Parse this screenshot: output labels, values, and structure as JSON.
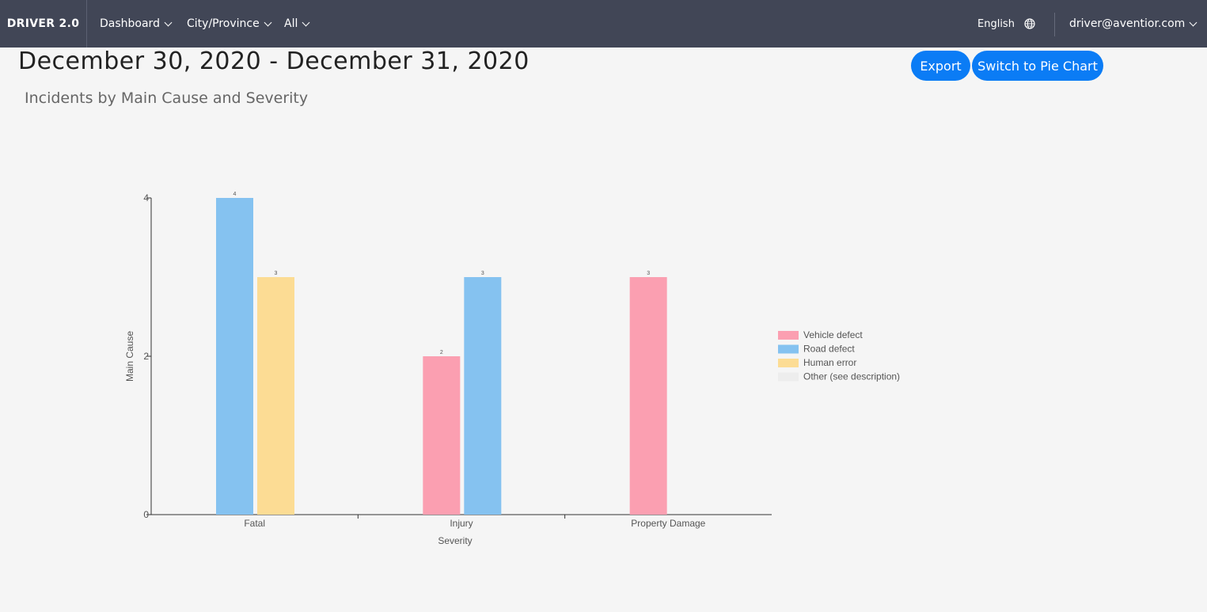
{
  "navbar": {
    "brand": "DRIVER 2.0",
    "items": [
      {
        "label": "Dashboard"
      },
      {
        "label": "City/Province"
      },
      {
        "label": "All"
      }
    ],
    "language": "English",
    "user": "driver@aventior.com",
    "icons": {
      "globe": "globe-icon",
      "dropdown": "chevron-down-icon"
    },
    "background": "#414656"
  },
  "header": {
    "date_range": "December 30, 2020 - December 31, 2020",
    "subtitle": "Incidents by Main Cause and Severity"
  },
  "buttons": {
    "export": "Export",
    "switch_chart": "Switch to Pie Chart",
    "color": "#0b7cf5"
  },
  "chart_data": {
    "type": "bar",
    "categories": [
      "Fatal",
      "Injury",
      "Property Damage"
    ],
    "series": [
      {
        "name": "Vehicle defect",
        "color": "#fb9fb1",
        "values": [
          0,
          2,
          3
        ]
      },
      {
        "name": "Road defect",
        "color": "#85c2f0",
        "values": [
          4,
          3,
          0
        ]
      },
      {
        "name": "Human error",
        "color": "#fcdc94",
        "values": [
          3,
          0,
          0
        ]
      },
      {
        "name": "Other (see description)",
        "color": "#ededed",
        "values": [
          0,
          0,
          0
        ]
      }
    ],
    "xlabel": "Severity",
    "ylabel": "Main Cause",
    "ylim": [
      0,
      4
    ],
    "yticks": [
      0,
      2,
      4
    ],
    "legend": "right",
    "grid": false
  }
}
